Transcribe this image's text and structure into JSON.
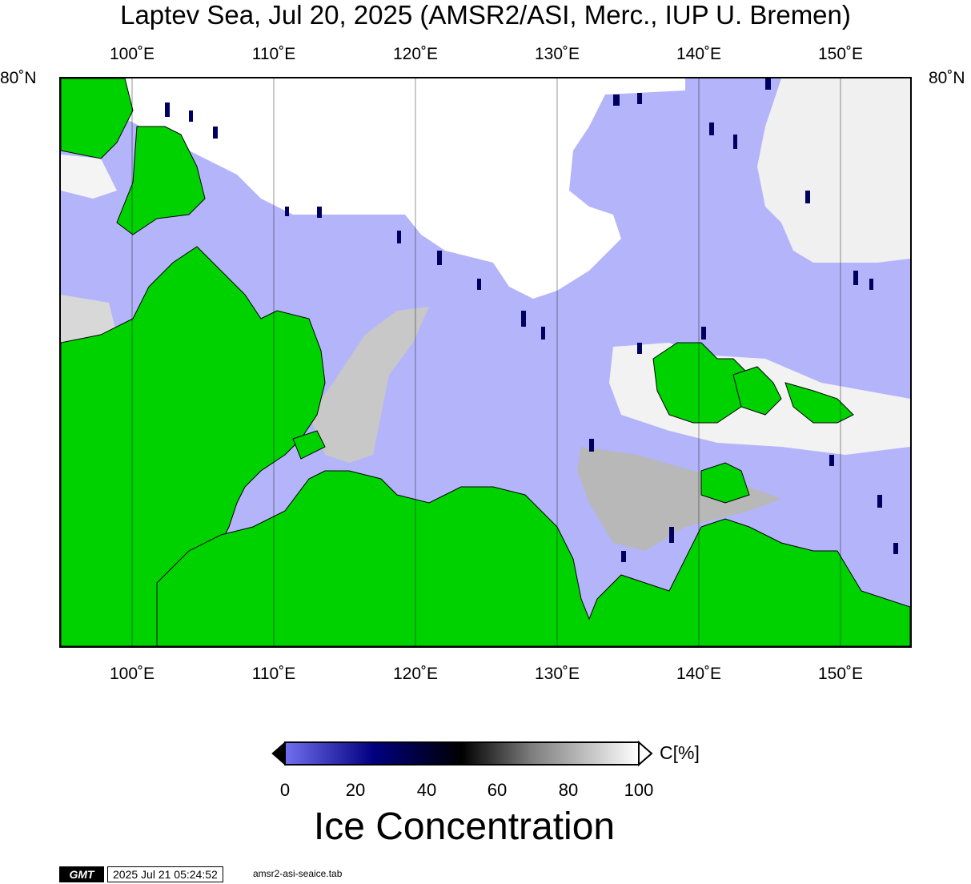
{
  "title": "Laptev Sea, Jul 20, 2025 (AMSR2/ASI, Merc., IUP U. Bremen)",
  "map": {
    "region": "Laptev Sea",
    "lon_labels": [
      "100˚E",
      "110˚E",
      "120˚E",
      "130˚E",
      "140˚E",
      "150˚E"
    ],
    "lat_label": "80˚N",
    "colors": {
      "open_water": "#b4b4fa",
      "land": "#00d200",
      "coast": "#000000"
    }
  },
  "colorbar": {
    "ticks": [
      "0",
      "20",
      "40",
      "60",
      "80",
      "100"
    ],
    "unit": "C[%]",
    "title": "Ice Concentration",
    "colors": [
      "#6f6ff0",
      "#000080",
      "#000000",
      "#7f7f7f",
      "#ffffff"
    ]
  },
  "footer": {
    "logo": "GMT",
    "timestamp": "2025 Jul 21 05:24:52",
    "source": "amsr2-asi-seaice.tab"
  }
}
